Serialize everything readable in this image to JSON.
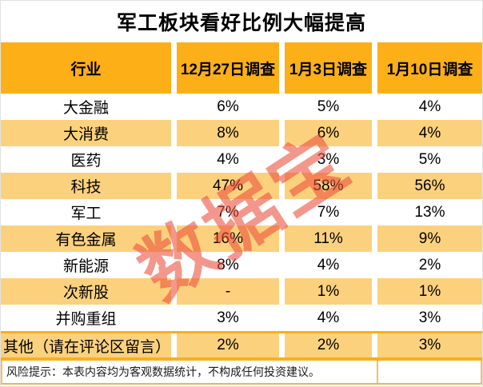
{
  "title": "军工板块看好比例大幅提高",
  "watermark": "数据宝",
  "table": {
    "columns": [
      "行业",
      "12月27日调查",
      "1月3日调查",
      "1月10日调查"
    ],
    "rows": [
      {
        "industry": "大金融",
        "values": [
          "6%",
          "5%",
          "4%"
        ]
      },
      {
        "industry": "大消费",
        "values": [
          "8%",
          "6%",
          "4%"
        ]
      },
      {
        "industry": "医药",
        "values": [
          "4%",
          "3%",
          "5%"
        ]
      },
      {
        "industry": "科技",
        "values": [
          "47%",
          "58%",
          "56%"
        ]
      },
      {
        "industry": "军工",
        "values": [
          "7%",
          "7%",
          "13%"
        ]
      },
      {
        "industry": "有色金属",
        "values": [
          "16%",
          "11%",
          "9%"
        ]
      },
      {
        "industry": "新能源",
        "values": [
          "8%",
          "4%",
          "2%"
        ]
      },
      {
        "industry": "次新股",
        "values": [
          "-",
          "1%",
          "1%"
        ]
      },
      {
        "industry": "并购重组",
        "values": [
          "3%",
          "4%",
          "3%"
        ]
      },
      {
        "industry": "其他（请在评论区留言）",
        "values": [
          "2%",
          "2%",
          "3%"
        ]
      }
    ]
  },
  "footer": {
    "note": "风险提示：本表内容均为客观数据统计，不构成任何投资建议。"
  },
  "colors": {
    "header_orange": "#fdaf18",
    "band_orange": "#fcd17d",
    "watermark_red": "#ea4c3a",
    "title_text": "#000000",
    "outer_border": "#e2e2e2"
  }
}
